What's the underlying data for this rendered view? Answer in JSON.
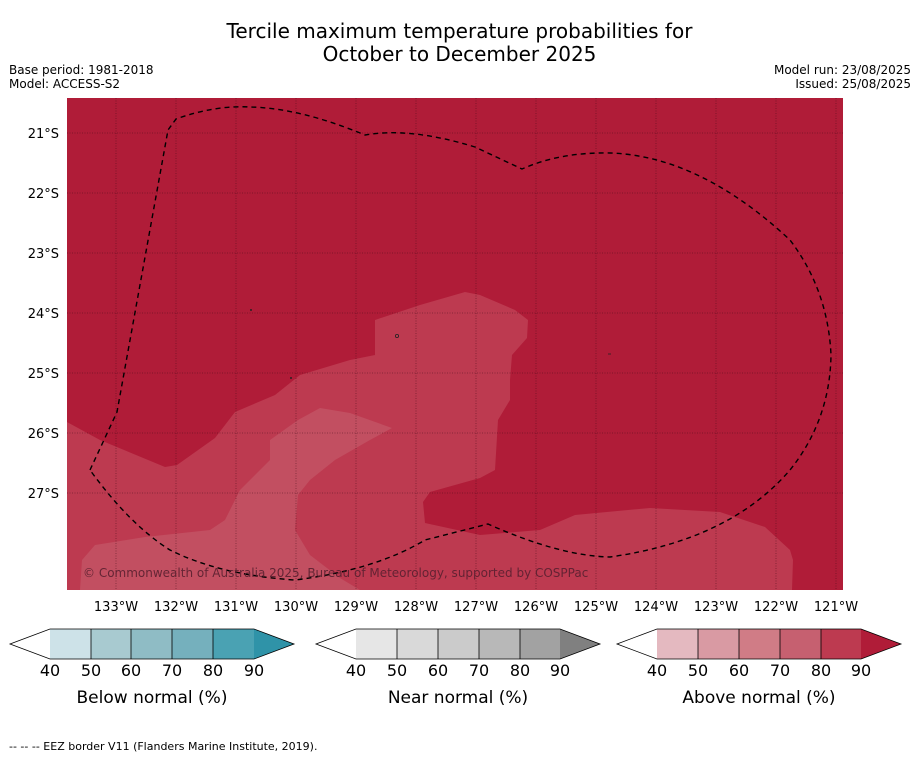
{
  "title_line1": "Tercile maximum temperature probabilities for",
  "title_line2": "October to December 2025",
  "meta_left": {
    "base_period": "Base period: 1981-2018",
    "model": "Model: ACCESS-S2"
  },
  "meta_right": {
    "model_run": "Model run: 23/08/2025",
    "issued": "Issued: 25/08/2025"
  },
  "map": {
    "lat_labels": [
      "21°S",
      "22°S",
      "23°S",
      "24°S",
      "25°S",
      "26°S",
      "27°S"
    ],
    "lon_labels": [
      "133°W",
      "132°W",
      "131°W",
      "130°W",
      "129°W",
      "128°W",
      "127°W",
      "126°W",
      "125°W",
      "124°W",
      "123°W",
      "122°W",
      "121°W"
    ],
    "copyright": "© Commonwealth of Australia 2025, Bureau of Meteorology, supported by COSPPac",
    "colors": {
      "above_90": "#b01c38",
      "above_80": "#bd3a50",
      "above_70": "#c24f61"
    }
  },
  "legend": {
    "ticks": [
      "40",
      "50",
      "60",
      "70",
      "80",
      "90"
    ],
    "below": {
      "title": "Below normal (%)",
      "colors": [
        "#cde2e8",
        "#a8cad0",
        "#8fbcc5",
        "#75b0bd",
        "#4aa2b3",
        "#2f93a8"
      ]
    },
    "near": {
      "title": "Near normal (%)",
      "colors": [
        "#e6e6e6",
        "#d9d9d9",
        "#cbcbcb",
        "#b8b8b8",
        "#a2a2a2",
        "#808080"
      ]
    },
    "above": {
      "title": "Above normal (%)",
      "colors": [
        "#e4b9c0",
        "#d99aa3",
        "#d07c86",
        "#c66070",
        "#bd3a50",
        "#b01c38"
      ]
    }
  },
  "footnote": "-- -- -- EEZ border V11 (Flanders Marine Institute, 2019)."
}
